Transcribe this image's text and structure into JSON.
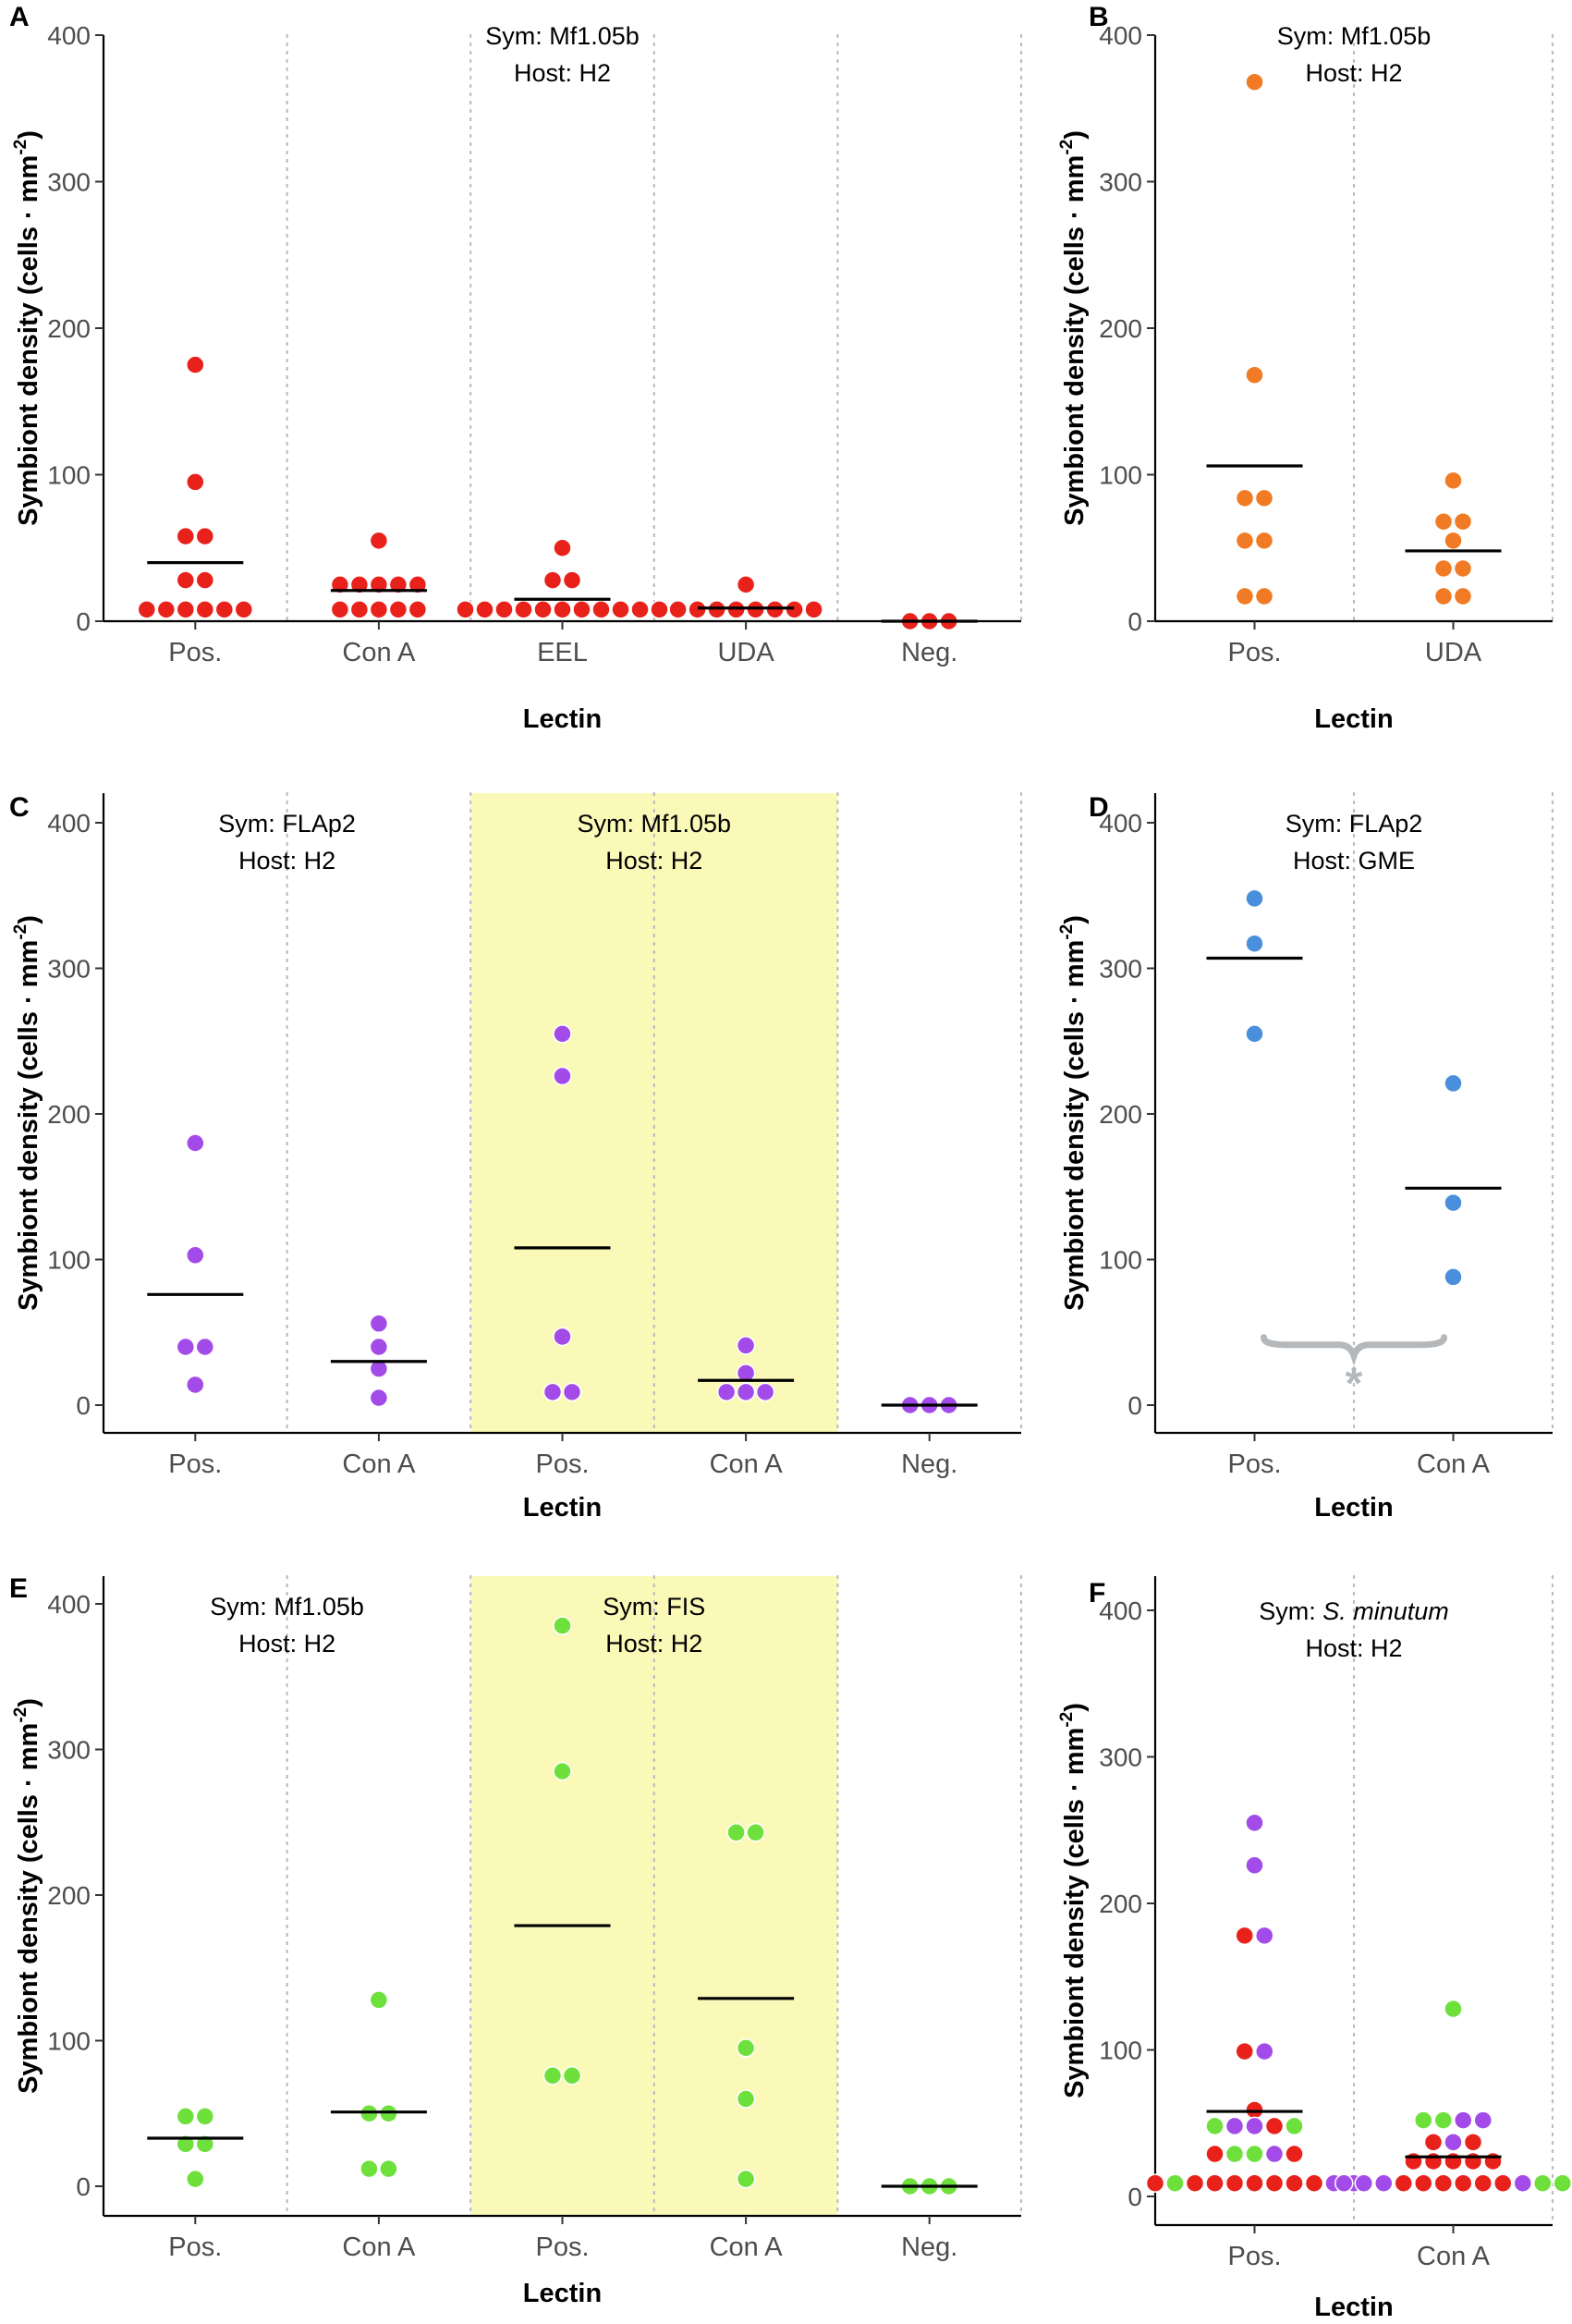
{
  "figure": {
    "y_axis_label": "Symbiont density (cells · mm",
    "y_axis_superscript": "-2",
    "y_axis_label_close": ")",
    "x_axis_label": "Lectin",
    "y_ticks": [
      0,
      100,
      200,
      300,
      400
    ]
  },
  "colors": {
    "red": "#e8211b",
    "orange": "#f07b24",
    "purple": "#a24be8",
    "blue": "#4a8fdc",
    "green": "#6ee03c",
    "highlight": "#fbf9b8",
    "sig": "#b4b8bb"
  },
  "chart_data": [
    {
      "panel": "A",
      "type": "scatter",
      "categories": [
        "Pos.",
        "Con A",
        "EEL",
        "UDA",
        "Neg."
      ],
      "ylim": [
        0,
        400
      ],
      "annotations": [
        {
          "sym_prefix": "Sym: ",
          "sym": "Mf1.05b",
          "host": "Host: H2",
          "span": [
            0,
            4
          ]
        }
      ],
      "highlight_spans": [],
      "significance": null,
      "points": [
        {
          "cat": 0,
          "value": 175,
          "color": "red"
        },
        {
          "cat": 0,
          "value": 95,
          "color": "red"
        },
        {
          "cat": 0,
          "value": 58,
          "color": "red"
        },
        {
          "cat": 0,
          "value": 58,
          "color": "red"
        },
        {
          "cat": 0,
          "value": 28,
          "color": "red"
        },
        {
          "cat": 0,
          "value": 28,
          "color": "red"
        },
        {
          "cat": 0,
          "value": 8,
          "color": "red"
        },
        {
          "cat": 0,
          "value": 8,
          "color": "red"
        },
        {
          "cat": 0,
          "value": 8,
          "color": "red"
        },
        {
          "cat": 0,
          "value": 8,
          "color": "red"
        },
        {
          "cat": 0,
          "value": 8,
          "color": "red"
        },
        {
          "cat": 0,
          "value": 8,
          "color": "red"
        },
        {
          "cat": 1,
          "value": 55,
          "color": "red"
        },
        {
          "cat": 1,
          "value": 25,
          "color": "red"
        },
        {
          "cat": 1,
          "value": 25,
          "color": "red"
        },
        {
          "cat": 1,
          "value": 25,
          "color": "red"
        },
        {
          "cat": 1,
          "value": 25,
          "color": "red"
        },
        {
          "cat": 1,
          "value": 25,
          "color": "red"
        },
        {
          "cat": 1,
          "value": 8,
          "color": "red"
        },
        {
          "cat": 1,
          "value": 8,
          "color": "red"
        },
        {
          "cat": 1,
          "value": 8,
          "color": "red"
        },
        {
          "cat": 1,
          "value": 8,
          "color": "red"
        },
        {
          "cat": 1,
          "value": 8,
          "color": "red"
        },
        {
          "cat": 2,
          "value": 50,
          "color": "red"
        },
        {
          "cat": 2,
          "value": 28,
          "color": "red"
        },
        {
          "cat": 2,
          "value": 28,
          "color": "red"
        },
        {
          "cat": 2,
          "value": 8,
          "color": "red"
        },
        {
          "cat": 2,
          "value": 8,
          "color": "red"
        },
        {
          "cat": 2,
          "value": 8,
          "color": "red"
        },
        {
          "cat": 2,
          "value": 8,
          "color": "red"
        },
        {
          "cat": 2,
          "value": 8,
          "color": "red"
        },
        {
          "cat": 2,
          "value": 8,
          "color": "red"
        },
        {
          "cat": 2,
          "value": 8,
          "color": "red"
        },
        {
          "cat": 2,
          "value": 8,
          "color": "red"
        },
        {
          "cat": 2,
          "value": 8,
          "color": "red"
        },
        {
          "cat": 2,
          "value": 8,
          "color": "red"
        },
        {
          "cat": 2,
          "value": 8,
          "color": "red"
        },
        {
          "cat": 3,
          "value": 25,
          "color": "red"
        },
        {
          "cat": 3,
          "value": 8,
          "color": "red"
        },
        {
          "cat": 3,
          "value": 8,
          "color": "red"
        },
        {
          "cat": 3,
          "value": 8,
          "color": "red"
        },
        {
          "cat": 3,
          "value": 8,
          "color": "red"
        },
        {
          "cat": 3,
          "value": 8,
          "color": "red"
        },
        {
          "cat": 3,
          "value": 8,
          "color": "red"
        },
        {
          "cat": 3,
          "value": 8,
          "color": "red"
        },
        {
          "cat": 3,
          "value": 8,
          "color": "red"
        },
        {
          "cat": 4,
          "value": 0,
          "color": "red"
        },
        {
          "cat": 4,
          "value": 0,
          "color": "red"
        },
        {
          "cat": 4,
          "value": 0,
          "color": "red"
        }
      ],
      "means": [
        40,
        21,
        15,
        9,
        0
      ]
    },
    {
      "panel": "B",
      "type": "scatter",
      "categories": [
        "Pos.",
        "UDA"
      ],
      "ylim": [
        0,
        400
      ],
      "annotations": [
        {
          "sym_prefix": "Sym: ",
          "sym": "Mf1.05b",
          "host": "Host: H2",
          "span": [
            0,
            1
          ]
        }
      ],
      "highlight_spans": [],
      "significance": null,
      "points": [
        {
          "cat": 0,
          "value": 368,
          "color": "orange"
        },
        {
          "cat": 0,
          "value": 168,
          "color": "orange"
        },
        {
          "cat": 0,
          "value": 84,
          "color": "orange"
        },
        {
          "cat": 0,
          "value": 84,
          "color": "orange"
        },
        {
          "cat": 0,
          "value": 55,
          "color": "orange"
        },
        {
          "cat": 0,
          "value": 55,
          "color": "orange"
        },
        {
          "cat": 0,
          "value": 17,
          "color": "orange"
        },
        {
          "cat": 0,
          "value": 17,
          "color": "orange"
        },
        {
          "cat": 1,
          "value": 96,
          "color": "orange"
        },
        {
          "cat": 1,
          "value": 68,
          "color": "orange"
        },
        {
          "cat": 1,
          "value": 68,
          "color": "orange"
        },
        {
          "cat": 1,
          "value": 55,
          "color": "orange"
        },
        {
          "cat": 1,
          "value": 36,
          "color": "orange"
        },
        {
          "cat": 1,
          "value": 36,
          "color": "orange"
        },
        {
          "cat": 1,
          "value": 17,
          "color": "orange"
        },
        {
          "cat": 1,
          "value": 17,
          "color": "orange"
        }
      ],
      "means": [
        106,
        48
      ]
    },
    {
      "panel": "C",
      "type": "scatter",
      "categories": [
        "Pos.",
        "Con A",
        "Pos.",
        "Con A",
        "Neg."
      ],
      "ylim": [
        0,
        400
      ],
      "annotations": [
        {
          "sym_prefix": "Sym: ",
          "sym": "FLAp2",
          "host": "Host: H2",
          "span": [
            0,
            1
          ]
        },
        {
          "sym_prefix": "Sym: ",
          "sym": "Mf1.05b",
          "host": "Host: H2",
          "span": [
            2,
            3
          ]
        }
      ],
      "highlight_spans": [
        [
          2,
          3
        ]
      ],
      "significance": null,
      "points": [
        {
          "cat": 0,
          "value": 180,
          "color": "purple"
        },
        {
          "cat": 0,
          "value": 103,
          "color": "purple"
        },
        {
          "cat": 0,
          "value": 40,
          "color": "purple"
        },
        {
          "cat": 0,
          "value": 40,
          "color": "purple"
        },
        {
          "cat": 0,
          "value": 14,
          "color": "purple"
        },
        {
          "cat": 1,
          "value": 56,
          "color": "purple"
        },
        {
          "cat": 1,
          "value": 40,
          "color": "purple"
        },
        {
          "cat": 1,
          "value": 25,
          "color": "purple"
        },
        {
          "cat": 1,
          "value": 5,
          "color": "purple"
        },
        {
          "cat": 2,
          "value": 255,
          "color": "purple"
        },
        {
          "cat": 2,
          "value": 226,
          "color": "purple"
        },
        {
          "cat": 2,
          "value": 47,
          "color": "purple"
        },
        {
          "cat": 2,
          "value": 9,
          "color": "purple"
        },
        {
          "cat": 2,
          "value": 9,
          "color": "purple"
        },
        {
          "cat": 3,
          "value": 41,
          "color": "purple"
        },
        {
          "cat": 3,
          "value": 22,
          "color": "purple"
        },
        {
          "cat": 3,
          "value": 9,
          "color": "purple"
        },
        {
          "cat": 3,
          "value": 9,
          "color": "purple"
        },
        {
          "cat": 3,
          "value": 9,
          "color": "purple"
        },
        {
          "cat": 4,
          "value": 0,
          "color": "purple"
        },
        {
          "cat": 4,
          "value": 0,
          "color": "purple"
        },
        {
          "cat": 4,
          "value": 0,
          "color": "purple"
        }
      ],
      "means": [
        76,
        30,
        108,
        17,
        0
      ]
    },
    {
      "panel": "D",
      "type": "scatter",
      "categories": [
        "Pos.",
        "Con A"
      ],
      "ylim": [
        0,
        400
      ],
      "annotations": [
        {
          "sym_prefix": "Sym: ",
          "sym": "FLAp2",
          "host": "Host: GME",
          "span": [
            0,
            1
          ]
        }
      ],
      "highlight_spans": [],
      "significance": {
        "from": 0,
        "to": 1,
        "value": 44,
        "mark": "*"
      },
      "points": [
        {
          "cat": 0,
          "value": 348,
          "color": "blue"
        },
        {
          "cat": 0,
          "value": 317,
          "color": "blue"
        },
        {
          "cat": 0,
          "value": 255,
          "color": "blue"
        },
        {
          "cat": 1,
          "value": 221,
          "color": "blue"
        },
        {
          "cat": 1,
          "value": 139,
          "color": "blue"
        },
        {
          "cat": 1,
          "value": 88,
          "color": "blue"
        }
      ],
      "means": [
        307,
        149
      ]
    },
    {
      "panel": "E",
      "type": "scatter",
      "categories": [
        "Pos.",
        "Con A",
        "Pos.",
        "Con A",
        "Neg."
      ],
      "ylim": [
        0,
        400
      ],
      "annotations": [
        {
          "sym_prefix": "Sym: ",
          "sym": "Mf1.05b",
          "host": "Host: H2",
          "span": [
            0,
            1
          ]
        },
        {
          "sym_prefix": "Sym: ",
          "sym": "FIS",
          "host": "Host: H2",
          "span": [
            2,
            3
          ]
        }
      ],
      "highlight_spans": [
        [
          2,
          3
        ]
      ],
      "significance": null,
      "points": [
        {
          "cat": 0,
          "value": 48,
          "color": "green"
        },
        {
          "cat": 0,
          "value": 48,
          "color": "green"
        },
        {
          "cat": 0,
          "value": 29,
          "color": "green"
        },
        {
          "cat": 0,
          "value": 29,
          "color": "green"
        },
        {
          "cat": 0,
          "value": 5,
          "color": "green"
        },
        {
          "cat": 1,
          "value": 128,
          "color": "green"
        },
        {
          "cat": 1,
          "value": 50,
          "color": "green"
        },
        {
          "cat": 1,
          "value": 50,
          "color": "green"
        },
        {
          "cat": 1,
          "value": 12,
          "color": "green"
        },
        {
          "cat": 1,
          "value": 12,
          "color": "green"
        },
        {
          "cat": 2,
          "value": 385,
          "color": "green"
        },
        {
          "cat": 2,
          "value": 285,
          "color": "green"
        },
        {
          "cat": 2,
          "value": 76,
          "color": "green"
        },
        {
          "cat": 2,
          "value": 76,
          "color": "green"
        },
        {
          "cat": 3,
          "value": 243,
          "color": "green"
        },
        {
          "cat": 3,
          "value": 243,
          "color": "green"
        },
        {
          "cat": 3,
          "value": 95,
          "color": "green"
        },
        {
          "cat": 3,
          "value": 60,
          "color": "green"
        },
        {
          "cat": 3,
          "value": 5,
          "color": "green"
        },
        {
          "cat": 4,
          "value": 0,
          "color": "green"
        },
        {
          "cat": 4,
          "value": 0,
          "color": "green"
        },
        {
          "cat": 4,
          "value": 0,
          "color": "green"
        }
      ],
      "means": [
        33,
        51,
        179,
        129,
        0
      ]
    },
    {
      "panel": "F",
      "type": "scatter",
      "categories": [
        "Pos.",
        "Con A"
      ],
      "ylim": [
        0,
        400
      ],
      "annotations": [
        {
          "sym_prefix": "Sym: ",
          "sym": "S. minutum",
          "sym_italic": true,
          "host": "Host: H2",
          "span": [
            0,
            1
          ]
        }
      ],
      "highlight_spans": [],
      "significance": null,
      "points": [
        {
          "cat": 0,
          "value": 255,
          "color": "purple"
        },
        {
          "cat": 0,
          "value": 226,
          "color": "purple"
        },
        {
          "cat": 0,
          "value": 178,
          "color": "red"
        },
        {
          "cat": 0,
          "value": 178,
          "color": "purple"
        },
        {
          "cat": 0,
          "value": 99,
          "color": "red"
        },
        {
          "cat": 0,
          "value": 99,
          "color": "purple"
        },
        {
          "cat": 0,
          "value": 59,
          "color": "red"
        },
        {
          "cat": 0,
          "value": 48,
          "color": "green"
        },
        {
          "cat": 0,
          "value": 48,
          "color": "purple"
        },
        {
          "cat": 0,
          "value": 48,
          "color": "purple"
        },
        {
          "cat": 0,
          "value": 48,
          "color": "red"
        },
        {
          "cat": 0,
          "value": 48,
          "color": "green"
        },
        {
          "cat": 0,
          "value": 29,
          "color": "red"
        },
        {
          "cat": 0,
          "value": 29,
          "color": "green"
        },
        {
          "cat": 0,
          "value": 29,
          "color": "green"
        },
        {
          "cat": 0,
          "value": 29,
          "color": "purple"
        },
        {
          "cat": 0,
          "value": 29,
          "color": "red"
        },
        {
          "cat": 0,
          "value": 9,
          "color": "red"
        },
        {
          "cat": 0,
          "value": 9,
          "color": "green"
        },
        {
          "cat": 0,
          "value": 9,
          "color": "red"
        },
        {
          "cat": 0,
          "value": 9,
          "color": "red"
        },
        {
          "cat": 0,
          "value": 9,
          "color": "red"
        },
        {
          "cat": 0,
          "value": 9,
          "color": "red"
        },
        {
          "cat": 0,
          "value": 9,
          "color": "red"
        },
        {
          "cat": 0,
          "value": 9,
          "color": "red"
        },
        {
          "cat": 0,
          "value": 9,
          "color": "red"
        },
        {
          "cat": 0,
          "value": 9,
          "color": "purple"
        },
        {
          "cat": 0,
          "value": 9,
          "color": "purple"
        },
        {
          "cat": 1,
          "value": 128,
          "color": "green"
        },
        {
          "cat": 1,
          "value": 52,
          "color": "green"
        },
        {
          "cat": 1,
          "value": 52,
          "color": "green"
        },
        {
          "cat": 1,
          "value": 52,
          "color": "purple"
        },
        {
          "cat": 1,
          "value": 52,
          "color": "purple"
        },
        {
          "cat": 1,
          "value": 37,
          "color": "red"
        },
        {
          "cat": 1,
          "value": 37,
          "color": "purple"
        },
        {
          "cat": 1,
          "value": 37,
          "color": "red"
        },
        {
          "cat": 1,
          "value": 24,
          "color": "red"
        },
        {
          "cat": 1,
          "value": 24,
          "color": "red"
        },
        {
          "cat": 1,
          "value": 24,
          "color": "red"
        },
        {
          "cat": 1,
          "value": 24,
          "color": "red"
        },
        {
          "cat": 1,
          "value": 24,
          "color": "red"
        },
        {
          "cat": 1,
          "value": 9,
          "color": "purple"
        },
        {
          "cat": 1,
          "value": 9,
          "color": "purple"
        },
        {
          "cat": 1,
          "value": 9,
          "color": "purple"
        },
        {
          "cat": 1,
          "value": 9,
          "color": "red"
        },
        {
          "cat": 1,
          "value": 9,
          "color": "red"
        },
        {
          "cat": 1,
          "value": 9,
          "color": "red"
        },
        {
          "cat": 1,
          "value": 9,
          "color": "red"
        },
        {
          "cat": 1,
          "value": 9,
          "color": "red"
        },
        {
          "cat": 1,
          "value": 9,
          "color": "red"
        },
        {
          "cat": 1,
          "value": 9,
          "color": "purple"
        },
        {
          "cat": 1,
          "value": 9,
          "color": "green"
        },
        {
          "cat": 1,
          "value": 9,
          "color": "green"
        }
      ],
      "means": [
        58,
        27
      ]
    }
  ]
}
